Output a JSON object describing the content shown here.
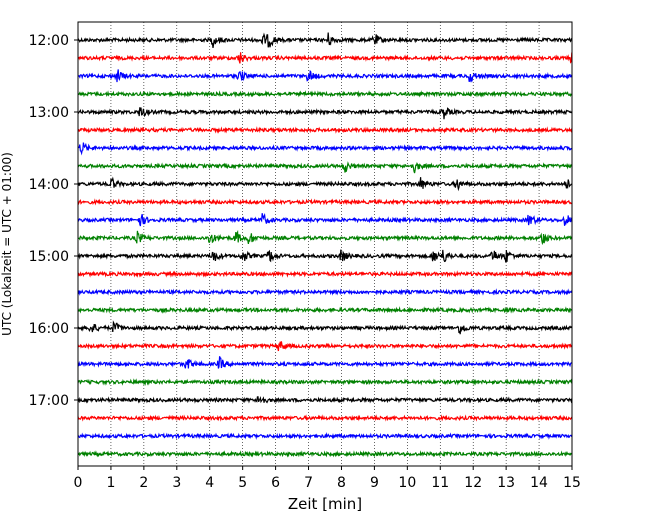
{
  "chart_data": {
    "type": "line",
    "xlabel": "Zeit  [min]",
    "ylabel": "UTC (Lokalzeit = UTC + 01:00)",
    "xlim": [
      0,
      15
    ],
    "x_ticks": [
      "0",
      "1",
      "2",
      "3",
      "4",
      "5",
      "6",
      "7",
      "8",
      "9",
      "10",
      "11",
      "12",
      "13",
      "14",
      "15"
    ],
    "y_ticks": [
      "12:00",
      "13:00",
      "14:00",
      "15:00",
      "16:00",
      "17:00"
    ],
    "grid": "vertical dotted at each minute",
    "colors": [
      "#000000",
      "#ff0000",
      "#0000ff",
      "#008000"
    ],
    "trace_rows": [
      {
        "start": "12:00",
        "color": "black",
        "events_min": [
          4.1,
          5.6,
          5.8,
          7.6,
          9.0
        ]
      },
      {
        "start": "12:15",
        "color": "red",
        "events_min": [
          4.9,
          15.0
        ]
      },
      {
        "start": "12:30",
        "color": "blue",
        "events_min": [
          1.2,
          4.9,
          7.0,
          11.9
        ]
      },
      {
        "start": "12:45",
        "color": "green",
        "events_min": []
      },
      {
        "start": "13:00",
        "color": "black",
        "events_min": [
          1.9,
          11.1
        ]
      },
      {
        "start": "13:15",
        "color": "red",
        "events_min": []
      },
      {
        "start": "13:30",
        "color": "blue",
        "events_min": [
          0.1
        ]
      },
      {
        "start": "13:45",
        "color": "green",
        "events_min": [
          8.1,
          10.2
        ]
      },
      {
        "start": "14:00",
        "color": "black",
        "events_min": [
          1.0,
          10.4,
          11.5,
          14.8
        ]
      },
      {
        "start": "14:15",
        "color": "red",
        "events_min": []
      },
      {
        "start": "14:30",
        "color": "blue",
        "events_min": [
          1.9,
          5.6,
          13.7,
          14.8
        ]
      },
      {
        "start": "14:45",
        "color": "green",
        "events_min": [
          1.8,
          4.0,
          4.8,
          5.2,
          14.1
        ]
      },
      {
        "start": "15:00",
        "color": "black",
        "events_min": [
          4.1,
          5.0,
          5.8,
          8.0,
          10.8,
          11.1,
          12.6,
          13.0
        ]
      },
      {
        "start": "15:15",
        "color": "red",
        "events_min": []
      },
      {
        "start": "15:30",
        "color": "blue",
        "events_min": []
      },
      {
        "start": "15:45",
        "color": "green",
        "events_min": []
      },
      {
        "start": "16:00",
        "color": "black",
        "events_min": [
          0.4,
          1.1,
          11.6
        ]
      },
      {
        "start": "16:15",
        "color": "red",
        "events_min": [
          6.1
        ]
      },
      {
        "start": "16:30",
        "color": "blue",
        "events_min": [
          3.3,
          4.3
        ]
      },
      {
        "start": "16:45",
        "color": "green",
        "events_min": []
      },
      {
        "start": "17:00",
        "color": "black",
        "events_min": [
          5.5
        ]
      },
      {
        "start": "17:15",
        "color": "red",
        "events_min": []
      },
      {
        "start": "17:30",
        "color": "blue",
        "events_min": []
      },
      {
        "start": "17:45",
        "color": "green",
        "events_min": []
      }
    ]
  }
}
